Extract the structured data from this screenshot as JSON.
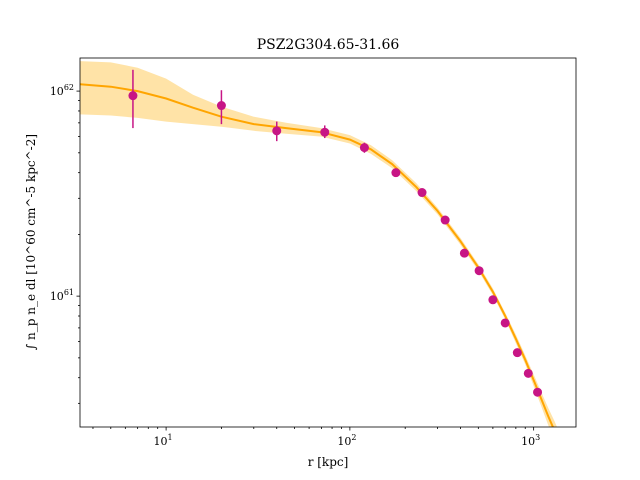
{
  "chart_data": {
    "type": "line",
    "title": "PSZ2G304.65-31.66",
    "xlabel": "r [kpc]",
    "ylabel": "∫ n_p n_e dl [10^60 cm^-5 kpc^-2]",
    "xscale": "log",
    "yscale": "log",
    "xlim": [
      3.4,
      1700
    ],
    "ylim": [
      2.3e+60,
      1.45e+62
    ],
    "grid": false,
    "x_ticks": [
      {
        "value": 10,
        "base": "10",
        "exp": "1"
      },
      {
        "value": 100,
        "base": "10",
        "exp": "2"
      },
      {
        "value": 1000,
        "base": "10",
        "exp": "3"
      }
    ],
    "y_ticks": [
      {
        "value": 1e+61,
        "base": "10",
        "exp": "61"
      },
      {
        "value": 1e+62,
        "base": "10",
        "exp": "62"
      }
    ],
    "colors": {
      "model_line": "#ffa500",
      "model_band": "#ffd98a",
      "data_points": "#c71585"
    },
    "model": {
      "x": [
        3.4,
        5,
        7,
        10,
        14,
        20,
        30,
        45,
        70,
        100,
        130,
        170,
        230,
        300,
        400,
        500,
        600,
        700,
        800,
        900,
        1000,
        1100,
        1200,
        1300,
        1400
      ],
      "y": [
        1.08e+62,
        1.05e+62,
        1e+62,
        9.2e+61,
        8.3e+61,
        7.5e+61,
        6.9e+61,
        6.6e+61,
        6.3e+61,
        5.8e+61,
        5.2e+61,
        4.4e+61,
        3.4e+61,
        2.6e+61,
        1.85e+61,
        1.38e+61,
        1.05e+61,
        8e+60,
        6.2e+60,
        4.9e+60,
        3.9e+60,
        3.15e+60,
        2.6e+60,
        2.2e+60,
        1.85e+60
      ],
      "upper": [
        1.4e+62,
        1.38e+62,
        1.3e+62,
        1.15e+62,
        9.6e+61,
        8.4e+61,
        7.5e+61,
        7e+61,
        6.6e+61,
        6.1e+61,
        5.45e+61,
        4.6e+61,
        3.55e+61,
        2.7e+61,
        1.92e+61,
        1.43e+61,
        1.09e+61,
        8.3e+60,
        6.5e+60,
        5.15e+60,
        4.15e+60,
        3.4e+60,
        2.85e+60,
        2.45e+60,
        2.1e+60
      ],
      "lower": [
        7.7e+61,
        7.6e+61,
        7.4e+61,
        7.1e+61,
        6.9e+61,
        6.7e+61,
        6.4e+61,
        6.2e+61,
        6e+61,
        5.55e+61,
        4.95e+61,
        4.2e+61,
        3.25e+61,
        2.5e+61,
        1.78e+61,
        1.33e+61,
        1.01e+61,
        7.7e+60,
        5.9e+60,
        4.65e+60,
        3.65e+60,
        2.9e+60,
        2.35e+60,
        1.95e+60,
        1.6e+60
      ]
    },
    "points": [
      {
        "x": 6.6,
        "y": 9.5e+61,
        "ylo": 6.6e+61,
        "yhi": 1.27e+62
      },
      {
        "x": 20,
        "y": 8.5e+61,
        "ylo": 6.9e+61,
        "yhi": 1.01e+62
      },
      {
        "x": 40,
        "y": 6.4e+61,
        "ylo": 5.7e+61,
        "yhi": 7.1e+61
      },
      {
        "x": 73,
        "y": 6.3e+61,
        "ylo": 5.9e+61,
        "yhi": 6.8e+61
      },
      {
        "x": 120,
        "y": 5.3e+61,
        "ylo": 5e+61,
        "yhi": 5.6e+61
      },
      {
        "x": 178,
        "y": 4e+61
      },
      {
        "x": 247,
        "y": 3.2e+61
      },
      {
        "x": 330,
        "y": 2.35e+61
      },
      {
        "x": 420,
        "y": 1.62e+61
      },
      {
        "x": 505,
        "y": 1.33e+61
      },
      {
        "x": 600,
        "y": 9.6e+60
      },
      {
        "x": 700,
        "y": 7.4e+60
      },
      {
        "x": 815,
        "y": 5.3e+60
      },
      {
        "x": 935,
        "y": 4.2e+60
      },
      {
        "x": 1050,
        "y": 3.4e+60
      }
    ]
  }
}
